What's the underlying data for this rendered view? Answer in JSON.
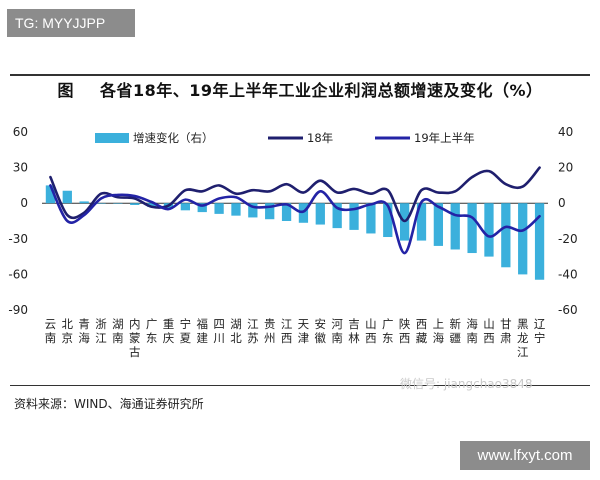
{
  "header_tag": "TG: MYYJJPP",
  "figure_label": "图",
  "title": "各省18年、19年上半年工业企业利润总额增速及变化（%）",
  "source": "资料来源：WIND、海通证券研究所",
  "watermark": "微信号: jiangchao3848",
  "footer_site": "www.lfxyt.com",
  "chart_data": {
    "type": "bar",
    "title": "各省18年、19年上半年工业企业利润总额增速及变化（%）",
    "categories": [
      "云南",
      "北京",
      "青海",
      "浙江",
      "湖南",
      "内蒙古",
      "广东",
      "重庆",
      "宁夏",
      "福建",
      "四川",
      "湖北",
      "江苏",
      "贵州",
      "江西",
      "天津",
      "安徽",
      "河南",
      "吉林",
      "山西",
      "广东",
      "陕西",
      "西藏",
      "上海",
      "新疆",
      "海南",
      "山西",
      "甘肃",
      "黑龙江",
      "辽宁"
    ],
    "left_axis": {
      "ticks": [
        60,
        30,
        0,
        -30,
        -60,
        -90
      ],
      "range": [
        -90,
        60
      ]
    },
    "right_axis": {
      "ticks": [
        40,
        20,
        0,
        -20,
        -40,
        -60
      ],
      "range": [
        -60,
        40
      ]
    },
    "legend": [
      "增速变化（右）",
      "18年",
      "19年上半年"
    ],
    "legend_position": "top",
    "series": [
      {
        "name": "增速变化（右）",
        "type": "bar",
        "axis": "right",
        "color": "#3bb0dc",
        "values": [
          10,
          7,
          1,
          0,
          0,
          -1,
          -2,
          -3,
          -4,
          -5,
          -6,
          -7,
          -8,
          -9,
          -10,
          -11,
          -12,
          -14,
          -15,
          -17,
          -19,
          -21,
          -21,
          -24,
          -26,
          -28,
          -30,
          -36,
          -40,
          -43
        ]
      },
      {
        "name": "18年",
        "type": "line",
        "axis": "left",
        "color": "#1f1f6e",
        "values": [
          22,
          -10,
          -8,
          8,
          5,
          4,
          -3,
          -2,
          11,
          10,
          15,
          8,
          11,
          10,
          16,
          9,
          19,
          9,
          12,
          8,
          11,
          -15,
          11,
          9,
          10,
          22,
          27,
          16,
          14,
          30
        ]
      },
      {
        "name": "19年上半年",
        "type": "line",
        "axis": "left",
        "color": "#2323a6",
        "values": [
          15,
          -15,
          -10,
          4,
          7,
          6,
          1,
          -5,
          3,
          -2,
          4,
          5,
          -3,
          -3,
          -1,
          -7,
          10,
          -4,
          -5,
          -1,
          -2,
          -42,
          1,
          -3,
          -10,
          -12,
          -28,
          -20,
          -23,
          -11
        ]
      }
    ]
  }
}
